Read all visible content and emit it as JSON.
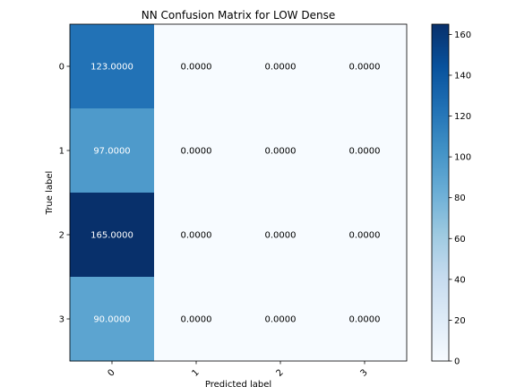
{
  "chart_data": {
    "type": "heatmap",
    "title": "NN Confusion Matrix for LOW Dense",
    "xlabel": "Predicted label",
    "ylabel": "True label",
    "x_categories": [
      "0",
      "1",
      "2",
      "3"
    ],
    "y_categories": [
      "0",
      "1",
      "2",
      "3"
    ],
    "values": [
      [
        123,
        0,
        0,
        0
      ],
      [
        97,
        0,
        0,
        0
      ],
      [
        165,
        0,
        0,
        0
      ],
      [
        90,
        0,
        0,
        0
      ]
    ],
    "cell_labels": [
      [
        "123.0000",
        "0.0000",
        "0.0000",
        "0.0000"
      ],
      [
        "97.0000",
        "0.0000",
        "0.0000",
        "0.0000"
      ],
      [
        "165.0000",
        "0.0000",
        "0.0000",
        "0.0000"
      ],
      [
        "90.0000",
        "0.0000",
        "0.0000",
        "0.0000"
      ]
    ],
    "colormap": "Blues",
    "color_range": [
      0,
      165
    ],
    "colorbar_ticks": [
      0,
      20,
      40,
      60,
      80,
      100,
      120,
      140,
      160
    ],
    "x_tick_rotation": 45,
    "grid": false
  }
}
